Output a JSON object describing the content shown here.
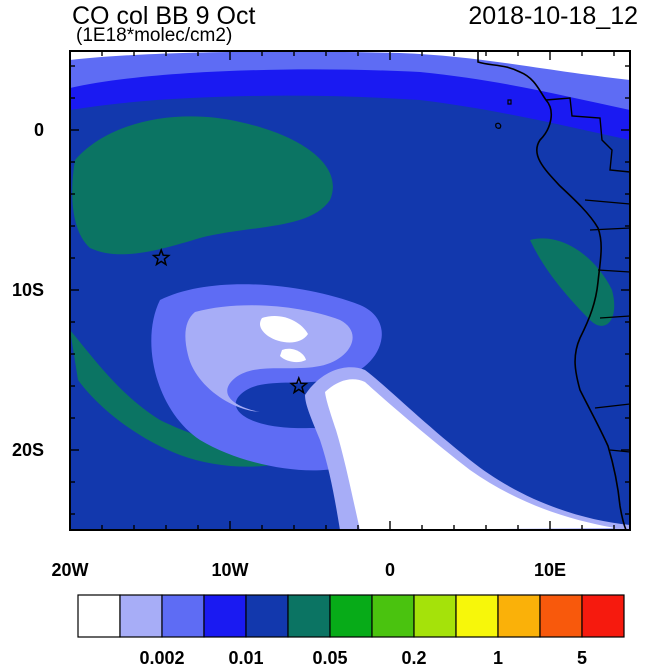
{
  "header": {
    "title": "CO col BB 9 Oct",
    "units": "(1E18*molec/cm2)",
    "datetime": "2018-10-18_12"
  },
  "axes": {
    "lat_labels": [
      "0",
      "10S",
      "20S"
    ],
    "lon_labels": [
      "20W",
      "10W",
      "0",
      "10E"
    ]
  },
  "colorbar": {
    "colors": [
      "#ffffff",
      "#a7adf7",
      "#5e6cf4",
      "#1a1af2",
      "#1238ad",
      "#0b7463",
      "#07ab18",
      "#4ac30f",
      "#a5e20a",
      "#f7f70a",
      "#fab109",
      "#f8590c",
      "#f61a0e"
    ],
    "tick_labels": [
      "0.002",
      "0.01",
      "0.05",
      "0.2",
      "1",
      "5"
    ]
  },
  "markers": [
    {
      "name": "star-west",
      "lon": -14.3,
      "lat": -8.0
    },
    {
      "name": "star-center",
      "lon": -5.7,
      "lat": -16.0
    }
  ]
}
